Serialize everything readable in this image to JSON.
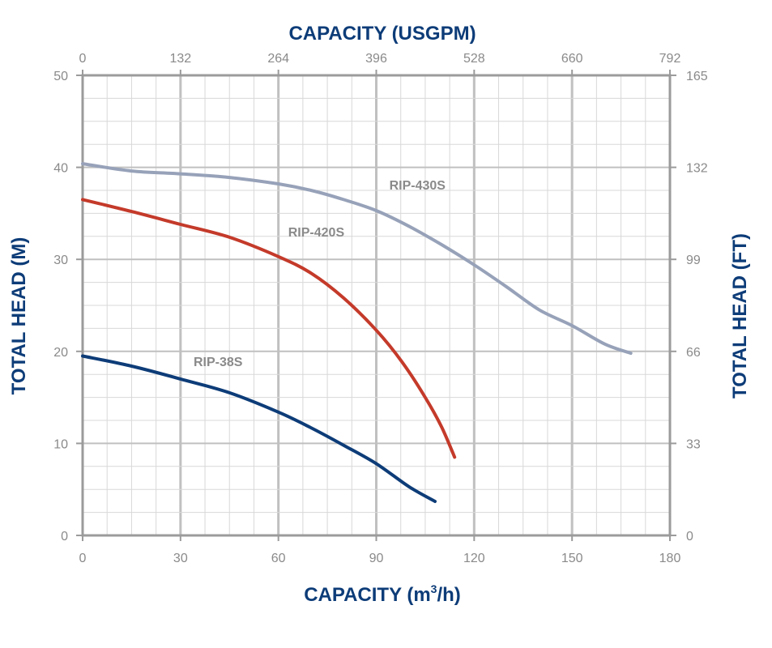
{
  "chart_data": {
    "type": "line",
    "xlabel": "CAPACITY (m",
    "xlabel_superscript": "3",
    "xlabel_suffix": "/h)",
    "x2label": "CAPACITY (USGPM)",
    "ylabel": "TOTAL HEAD (M)",
    "y2label": "TOTAL HEAD (FT)",
    "xlim": [
      0,
      180
    ],
    "ylim": [
      0,
      50
    ],
    "x_ticks": [
      "0",
      "30",
      "60",
      "90",
      "120",
      "150",
      "180"
    ],
    "x2_ticks": [
      "0",
      "132",
      "264",
      "396",
      "528",
      "660",
      "792"
    ],
    "y_ticks": [
      "0",
      "10",
      "20",
      "30",
      "40",
      "50"
    ],
    "y2_ticks": [
      "0",
      "33",
      "66",
      "99",
      "132",
      "165"
    ],
    "grid": true,
    "colors": {
      "grid": "#d8d8d8",
      "major_grid": "#c0c0c0",
      "frame": "#9b9b9b",
      "title": "#0d3c78",
      "tick": "#8a8a8a"
    },
    "series": [
      {
        "name": "RIP-430S",
        "color": "#97a2b9",
        "label_at": [
          94,
          37.6
        ],
        "points": [
          [
            0,
            40.4
          ],
          [
            15,
            39.6
          ],
          [
            30,
            39.3
          ],
          [
            45,
            38.9
          ],
          [
            60,
            38.2
          ],
          [
            70,
            37.5
          ],
          [
            80,
            36.5
          ],
          [
            90,
            35.3
          ],
          [
            100,
            33.6
          ],
          [
            110,
            31.6
          ],
          [
            120,
            29.4
          ],
          [
            130,
            27.0
          ],
          [
            140,
            24.5
          ],
          [
            150,
            22.8
          ],
          [
            160,
            20.8
          ],
          [
            168,
            19.8
          ]
        ]
      },
      {
        "name": "RIP-420S",
        "color": "#c43a2a",
        "label_at": [
          63,
          32.5
        ],
        "points": [
          [
            0,
            36.5
          ],
          [
            15,
            35.2
          ],
          [
            30,
            33.8
          ],
          [
            45,
            32.4
          ],
          [
            60,
            30.3
          ],
          [
            70,
            28.5
          ],
          [
            80,
            25.8
          ],
          [
            90,
            22.3
          ],
          [
            98,
            18.8
          ],
          [
            105,
            15.0
          ],
          [
            110,
            11.8
          ],
          [
            114,
            8.5
          ]
        ]
      },
      {
        "name": "RIP-38S",
        "color": "#0d3c78",
        "label_at": [
          34,
          18.4
        ],
        "points": [
          [
            0,
            19.5
          ],
          [
            15,
            18.4
          ],
          [
            30,
            17.0
          ],
          [
            45,
            15.5
          ],
          [
            60,
            13.4
          ],
          [
            70,
            11.7
          ],
          [
            80,
            9.8
          ],
          [
            90,
            7.8
          ],
          [
            100,
            5.3
          ],
          [
            108,
            3.7
          ]
        ]
      }
    ]
  }
}
